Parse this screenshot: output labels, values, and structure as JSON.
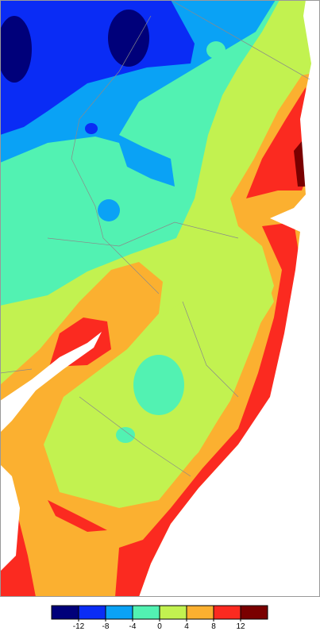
{
  "legend": {
    "range": [
      -16,
      16
    ],
    "ticks": [
      -12,
      -8,
      -4,
      0,
      4,
      8,
      12
    ],
    "colors": [
      "#00007a",
      "#0a2cf5",
      "#0aa2f5",
      "#52f2b2",
      "#c2f250",
      "#fbb030",
      "#fb2a20",
      "#7a0000"
    ]
  }
}
